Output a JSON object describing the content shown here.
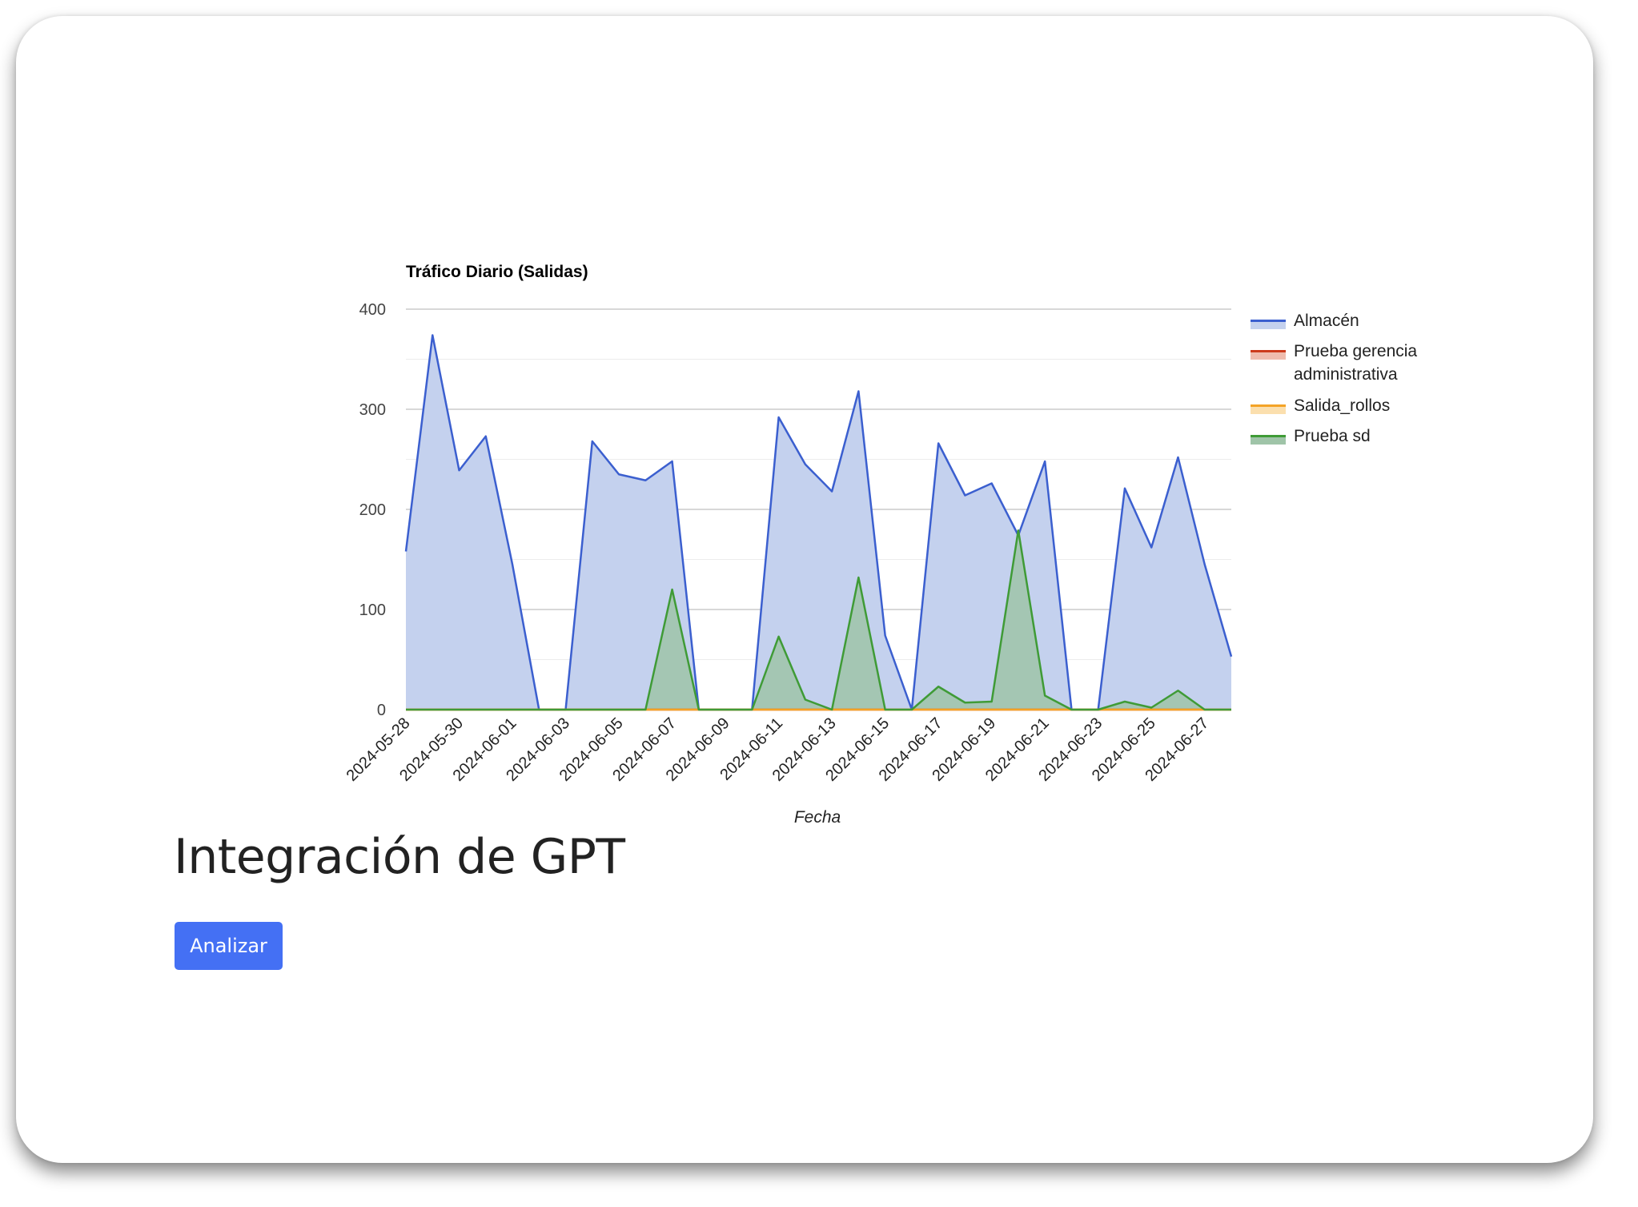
{
  "chart_data": {
    "type": "area",
    "title": "Tráfico Diario (Salidas)",
    "xlabel": "Fecha",
    "ylabel": "",
    "ylim": [
      0,
      400
    ],
    "yticks": [
      0,
      100,
      200,
      300,
      400
    ],
    "grid": true,
    "legend_position": "right",
    "x": [
      "2024-05-28",
      "2024-05-29",
      "2024-05-30",
      "2024-05-31",
      "2024-06-01",
      "2024-06-02",
      "2024-06-03",
      "2024-06-04",
      "2024-06-05",
      "2024-06-06",
      "2024-06-07",
      "2024-06-08",
      "2024-06-09",
      "2024-06-10",
      "2024-06-11",
      "2024-06-12",
      "2024-06-13",
      "2024-06-14",
      "2024-06-15",
      "2024-06-16",
      "2024-06-17",
      "2024-06-18",
      "2024-06-19",
      "2024-06-20",
      "2024-06-21",
      "2024-06-22",
      "2024-06-23",
      "2024-06-24",
      "2024-06-25",
      "2024-06-26",
      "2024-06-27",
      "2024-06-28"
    ],
    "xtick_labels": [
      "2024-05-28",
      "2024-05-30",
      "2024-06-01",
      "2024-06-03",
      "2024-06-05",
      "2024-06-07",
      "2024-06-09",
      "2024-06-11",
      "2024-06-13",
      "2024-06-15",
      "2024-06-17",
      "2024-06-19",
      "2024-06-21",
      "2024-06-23",
      "2024-06-25",
      "2024-06-27"
    ],
    "series": [
      {
        "name": "Almacén",
        "line_color": "#3b5fcf",
        "fill_color": "#c4d1ee",
        "values": [
          158,
          374,
          239,
          273,
          145,
          0,
          0,
          268,
          235,
          229,
          248,
          0,
          0,
          0,
          292,
          245,
          218,
          318,
          74,
          0,
          266,
          214,
          226,
          174,
          248,
          0,
          0,
          221,
          162,
          252,
          145,
          53
        ]
      },
      {
        "name": "Prueba gerencia administrativa",
        "line_color": "#cc3b1c",
        "fill_color": "#efbcae",
        "values": [
          0,
          0,
          0,
          0,
          0,
          0,
          0,
          0,
          0,
          0,
          0,
          0,
          0,
          0,
          0,
          0,
          0,
          0,
          0,
          0,
          0,
          0,
          0,
          0,
          0,
          0,
          0,
          0,
          0,
          0,
          0,
          0
        ]
      },
      {
        "name": "Salida_rollos",
        "line_color": "#f4a326",
        "fill_color": "#fbdfae",
        "values": [
          0,
          0,
          0,
          0,
          0,
          0,
          0,
          0,
          0,
          0,
          0,
          0,
          0,
          0,
          0,
          0,
          0,
          0,
          0,
          0,
          0,
          0,
          0,
          0,
          0,
          0,
          0,
          0,
          0,
          0,
          0,
          0
        ]
      },
      {
        "name": "Prueba sd",
        "line_color": "#3f9b36",
        "fill_color": "#9fc4a8",
        "values": [
          0,
          0,
          0,
          0,
          0,
          0,
          0,
          0,
          0,
          0,
          120,
          0,
          0,
          0,
          73,
          10,
          0,
          132,
          0,
          0,
          23,
          7,
          8,
          179,
          14,
          0,
          0,
          8,
          2,
          19,
          0,
          0
        ]
      }
    ]
  },
  "page": {
    "heading": "Integración de GPT",
    "analyze_button": "Analizar"
  }
}
